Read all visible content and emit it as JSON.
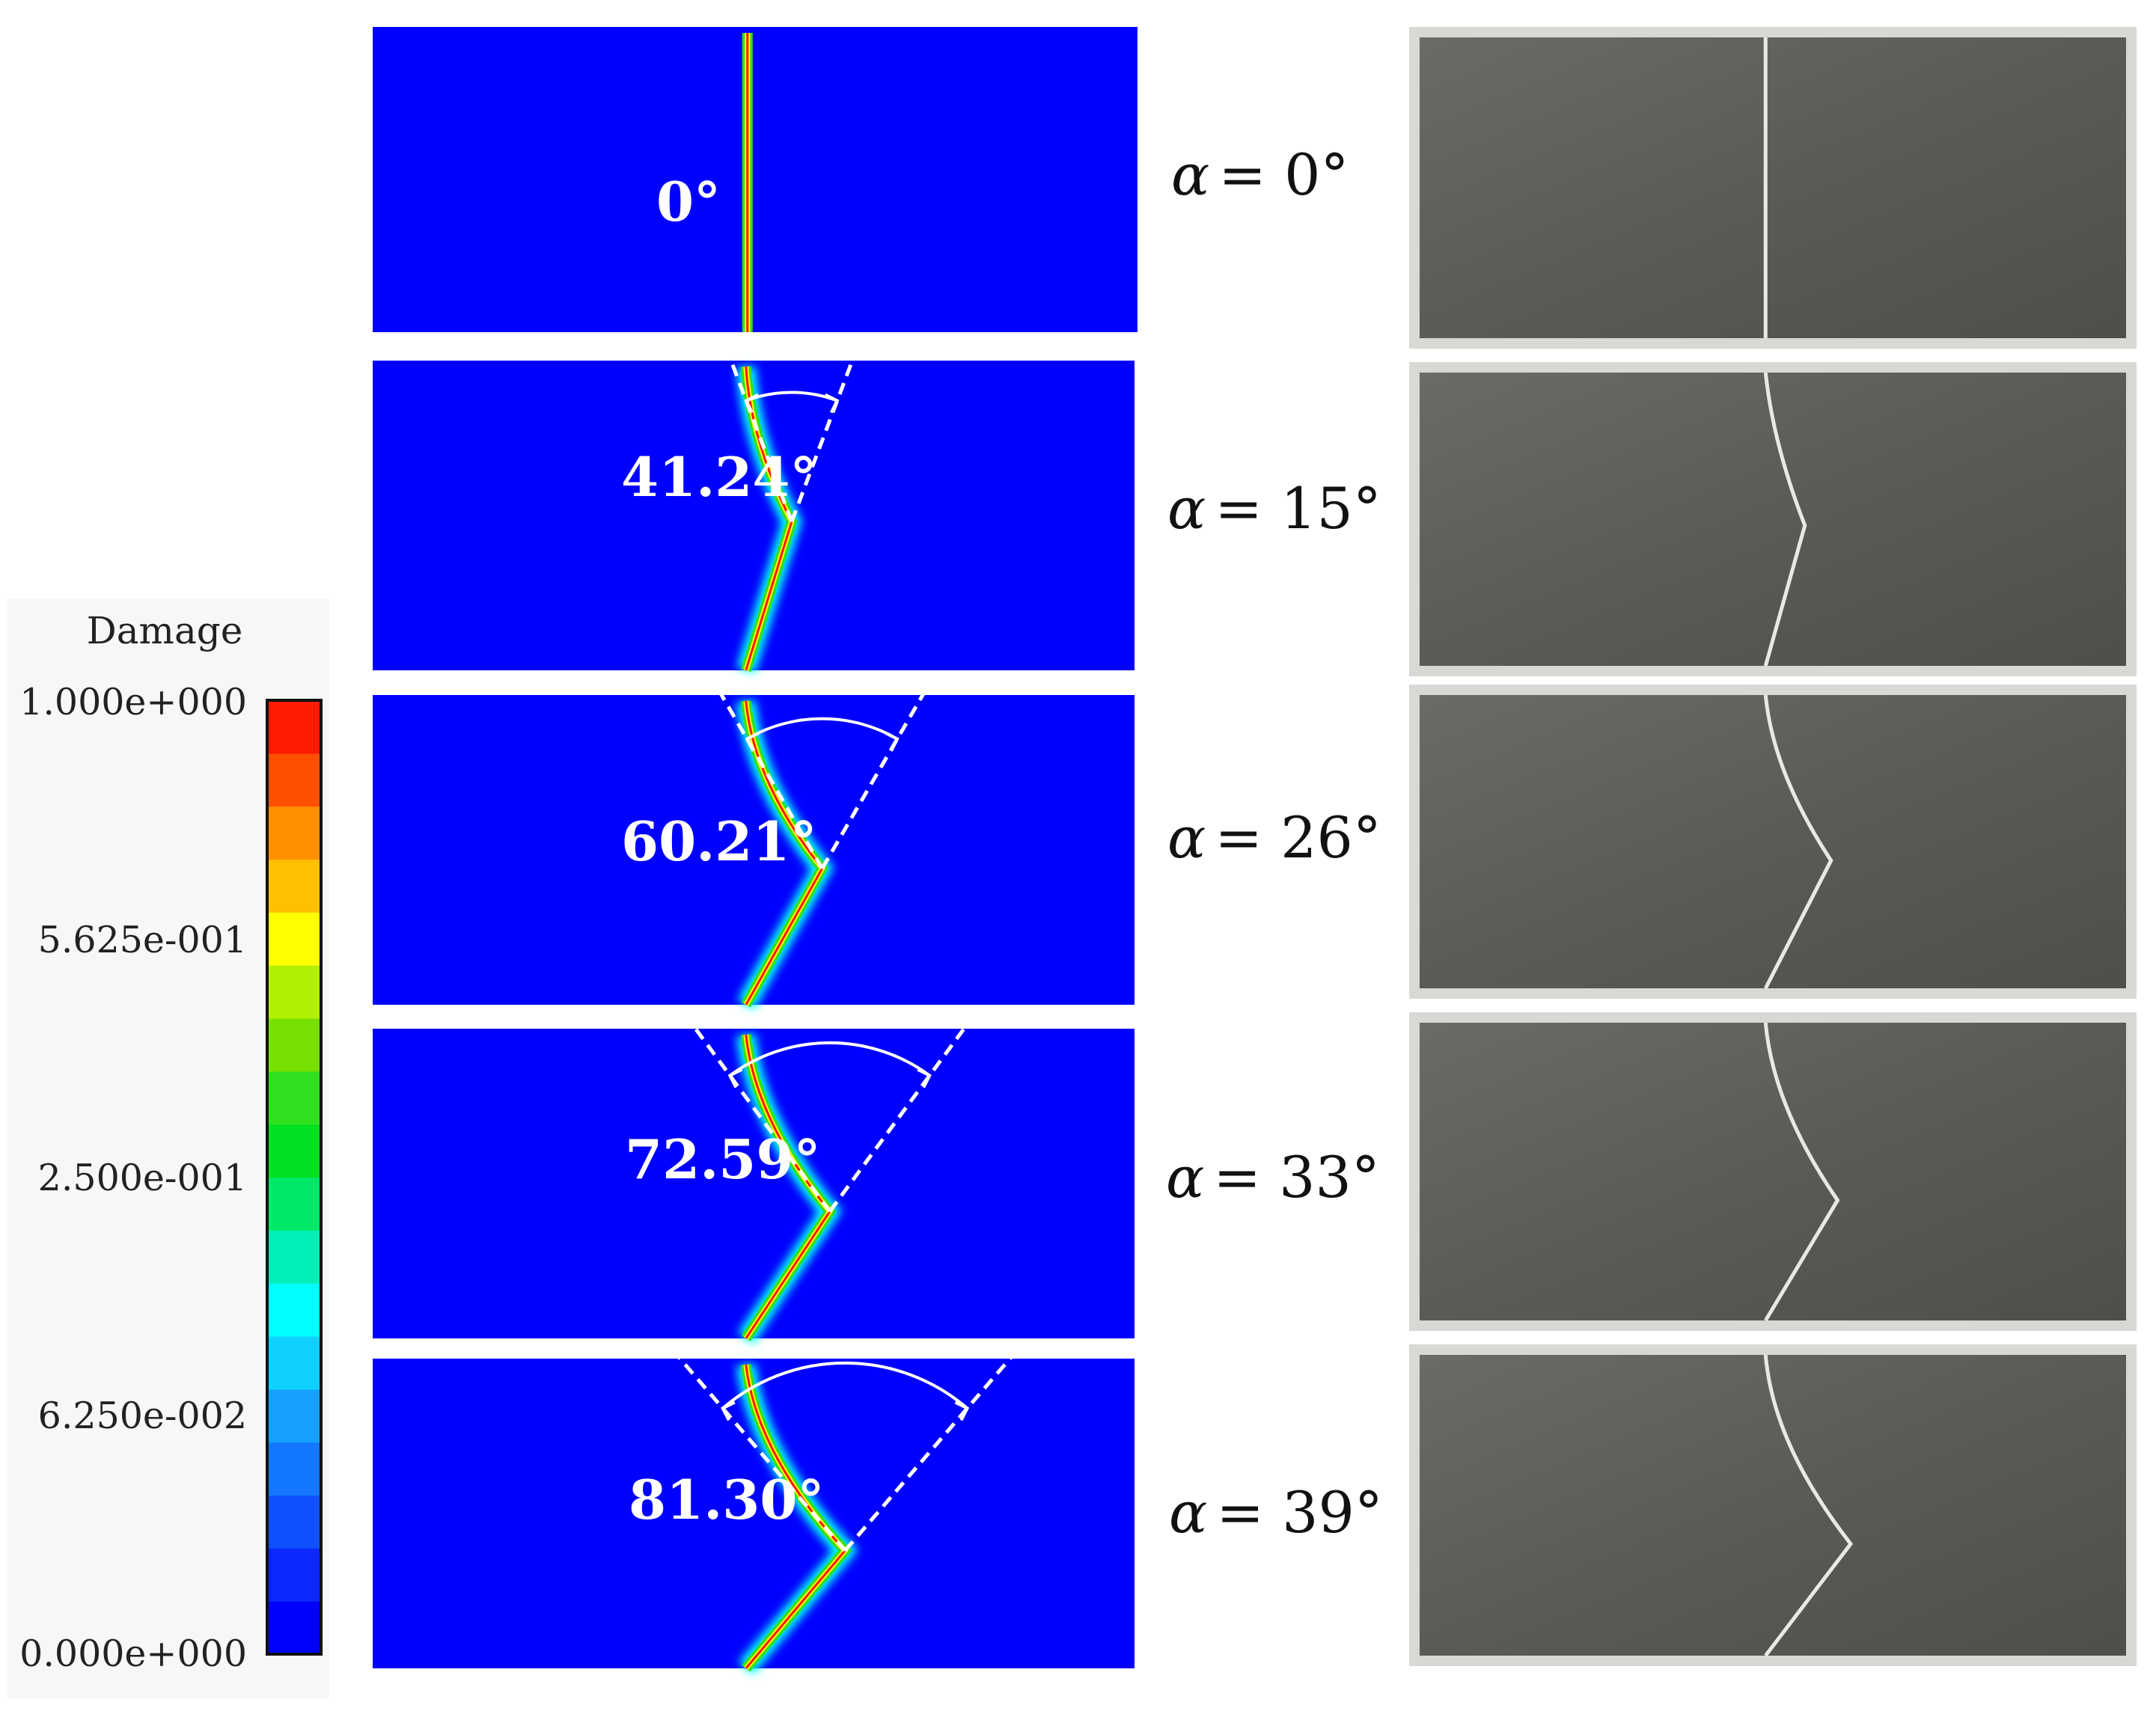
{
  "colorbar": {
    "title": "Damage",
    "tick_labels": [
      "1.000e+000",
      "5.625e-001",
      "2.500e-001",
      "6.250e-002",
      "0.000e+000"
    ],
    "colors": [
      "#0000ff",
      "#0a28ff",
      "#1050ff",
      "#1478ff",
      "#15a0ff",
      "#10d0ff",
      "#00ffff",
      "#00f0b8",
      "#00e868",
      "#00e020",
      "#30e020",
      "#78e000",
      "#b0f000",
      "#ffff00",
      "#ffc000",
      "#ff9000",
      "#ff5000",
      "#ff1a00"
    ]
  },
  "panels": [
    {
      "angle_label": "0°",
      "alpha_symbol": "α",
      "alpha_value": "= 0°",
      "kink_x": 0.49,
      "kink_y": 1.0,
      "pre_dx": 0.0,
      "cone": 0
    },
    {
      "angle_label": "41.24°",
      "alpha_symbol": "α",
      "alpha_value": "= 15°",
      "kink_x": 0.55,
      "kink_y": 0.52,
      "pre_dx": 0.03,
      "cone": 41.24
    },
    {
      "angle_label": "60.21°",
      "alpha_symbol": "α",
      "alpha_value": "= 26°",
      "kink_x": 0.59,
      "kink_y": 0.56,
      "pre_dx": 0.05,
      "cone": 60.21
    },
    {
      "angle_label": "72.59°",
      "alpha_symbol": "α",
      "alpha_value": "= 33°",
      "kink_x": 0.6,
      "kink_y": 0.59,
      "pre_dx": 0.06,
      "cone": 72.59
    },
    {
      "angle_label": "81.30°",
      "alpha_symbol": "α",
      "alpha_value": "= 39°",
      "kink_x": 0.62,
      "kink_y": 0.62,
      "pre_dx": 0.07,
      "cone": 81.3
    }
  ]
}
